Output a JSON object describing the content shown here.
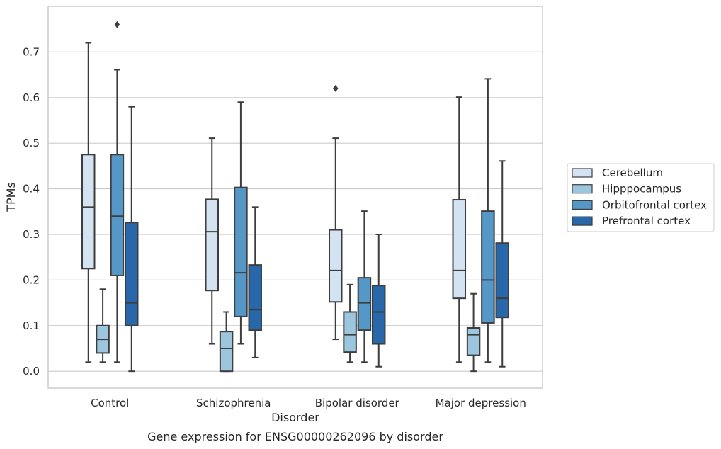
{
  "chart_data": {
    "type": "box",
    "xlabel": "Disorder",
    "ylabel": "TPMs",
    "caption": "Gene expression for ENSG00000262096 by disorder",
    "ylim": [
      -0.037,
      0.8
    ],
    "yticks": [
      0.0,
      0.1,
      0.2,
      0.3,
      0.4,
      0.5,
      0.6,
      0.7
    ],
    "ytick_labels": [
      "0.0",
      "0.1",
      "0.2",
      "0.3",
      "0.4",
      "0.5",
      "0.6",
      "0.7"
    ],
    "grid": "horizontal",
    "legend_position": "right",
    "categories": [
      "Control",
      "Schizophrenia",
      "Bipolar disorder",
      "Major depression"
    ],
    "series": [
      {
        "name": "Cerebellum",
        "color": "#d4e3f2",
        "boxes": [
          {
            "whislo": 0.02,
            "q1": 0.225,
            "med": 0.36,
            "q3": 0.475,
            "whishi": 0.72,
            "fliers": []
          },
          {
            "whislo": 0.06,
            "q1": 0.177,
            "med": 0.306,
            "q3": 0.377,
            "whishi": 0.511,
            "fliers": []
          },
          {
            "whislo": 0.07,
            "q1": 0.152,
            "med": 0.221,
            "q3": 0.31,
            "whishi": 0.511,
            "fliers": [
              0.62
            ]
          },
          {
            "whislo": 0.02,
            "q1": 0.16,
            "med": 0.221,
            "q3": 0.376,
            "whishi": 0.601,
            "fliers": []
          }
        ]
      },
      {
        "name": "Hipppocampus",
        "color": "#9cc5de",
        "boxes": [
          {
            "whislo": 0.02,
            "q1": 0.04,
            "med": 0.07,
            "q3": 0.1,
            "whishi": 0.18,
            "fliers": []
          },
          {
            "whislo": 0.0,
            "q1": 0.0,
            "med": 0.05,
            "q3": 0.087,
            "whishi": 0.13,
            "fliers": []
          },
          {
            "whislo": 0.02,
            "q1": 0.042,
            "med": 0.08,
            "q3": 0.13,
            "whishi": 0.19,
            "fliers": []
          },
          {
            "whislo": 0.0,
            "q1": 0.035,
            "med": 0.08,
            "q3": 0.095,
            "whishi": 0.17,
            "fliers": []
          }
        ]
      },
      {
        "name": "Orbitofrontal cortex",
        "color": "#5598c8",
        "boxes": [
          {
            "whislo": 0.02,
            "q1": 0.21,
            "med": 0.34,
            "q3": 0.475,
            "whishi": 0.661,
            "fliers": [
              0.76
            ]
          },
          {
            "whislo": 0.06,
            "q1": 0.12,
            "med": 0.216,
            "q3": 0.403,
            "whishi": 0.59,
            "fliers": []
          },
          {
            "whislo": 0.02,
            "q1": 0.09,
            "med": 0.15,
            "q3": 0.205,
            "whishi": 0.351,
            "fliers": []
          },
          {
            "whislo": 0.02,
            "q1": 0.106,
            "med": 0.2,
            "q3": 0.351,
            "whishi": 0.641,
            "fliers": []
          }
        ]
      },
      {
        "name": "Prefrontal cortex",
        "color": "#2867a9",
        "boxes": [
          {
            "whislo": 0.0,
            "q1": 0.1,
            "med": 0.15,
            "q3": 0.326,
            "whishi": 0.58,
            "fliers": []
          },
          {
            "whislo": 0.03,
            "q1": 0.09,
            "med": 0.135,
            "q3": 0.233,
            "whishi": 0.36,
            "fliers": []
          },
          {
            "whislo": 0.01,
            "q1": 0.06,
            "med": 0.13,
            "q3": 0.188,
            "whishi": 0.3,
            "fliers": []
          },
          {
            "whislo": 0.01,
            "q1": 0.118,
            "med": 0.16,
            "q3": 0.281,
            "whishi": 0.461,
            "fliers": []
          }
        ]
      }
    ]
  }
}
